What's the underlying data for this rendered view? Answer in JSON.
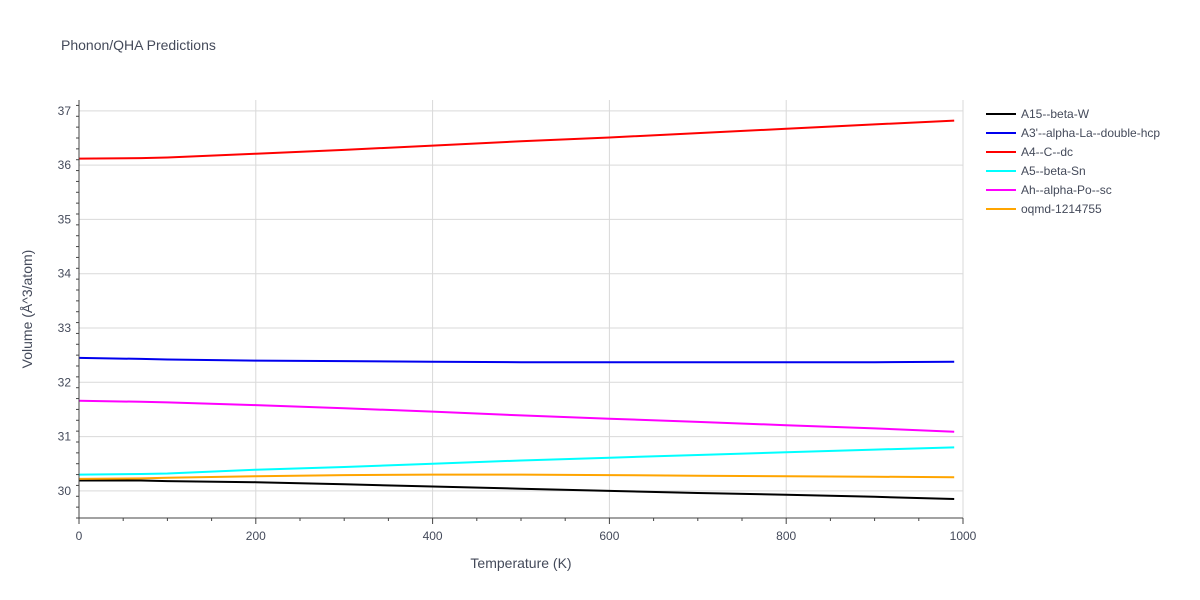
{
  "chart_data": {
    "type": "line",
    "title": "Phonon/QHA Predictions",
    "xlabel": "Temperature (K)",
    "ylabel": "Volume (Å^3/atom)",
    "xlim": [
      0,
      1000
    ],
    "ylim": [
      29.5,
      37.2
    ],
    "x_ticks": [
      0,
      200,
      400,
      600,
      800,
      1000
    ],
    "y_ticks": [
      30,
      31,
      32,
      33,
      34,
      35,
      36,
      37
    ],
    "grid": true,
    "legend_position": "top-right, outside plot",
    "x": [
      0,
      70,
      100,
      200,
      300,
      400,
      500,
      600,
      700,
      800,
      900,
      990
    ],
    "series": [
      {
        "name": "A15--beta-W",
        "color": "#000000",
        "values": [
          30.19,
          30.19,
          30.18,
          30.16,
          30.12,
          30.08,
          30.04,
          30.0,
          29.96,
          29.93,
          29.89,
          29.85
        ]
      },
      {
        "name": "A3'--alpha-La--double-hcp",
        "color": "#0000ee",
        "values": [
          32.45,
          32.43,
          32.42,
          32.4,
          32.39,
          32.38,
          32.37,
          32.37,
          32.37,
          32.37,
          32.37,
          32.38
        ]
      },
      {
        "name": "A4--C--dc",
        "color": "#ff0000",
        "values": [
          36.12,
          36.13,
          36.14,
          36.21,
          36.28,
          36.36,
          36.44,
          36.51,
          36.59,
          36.67,
          36.75,
          36.82
        ]
      },
      {
        "name": "A5--beta-Sn",
        "color": "#00ffff",
        "values": [
          30.3,
          30.31,
          30.32,
          30.39,
          30.44,
          30.5,
          30.56,
          30.61,
          30.66,
          30.71,
          30.76,
          30.8
        ]
      },
      {
        "name": "Ah--alpha-Po--sc",
        "color": "#ff00ff",
        "values": [
          31.66,
          31.64,
          31.63,
          31.58,
          31.52,
          31.46,
          31.39,
          31.33,
          31.27,
          31.21,
          31.15,
          31.09
        ]
      },
      {
        "name": "oqmd-1214755",
        "color": "#ffa500",
        "values": [
          30.22,
          30.23,
          30.24,
          30.27,
          30.29,
          30.3,
          30.3,
          30.29,
          30.28,
          30.27,
          30.26,
          30.25
        ]
      }
    ]
  }
}
